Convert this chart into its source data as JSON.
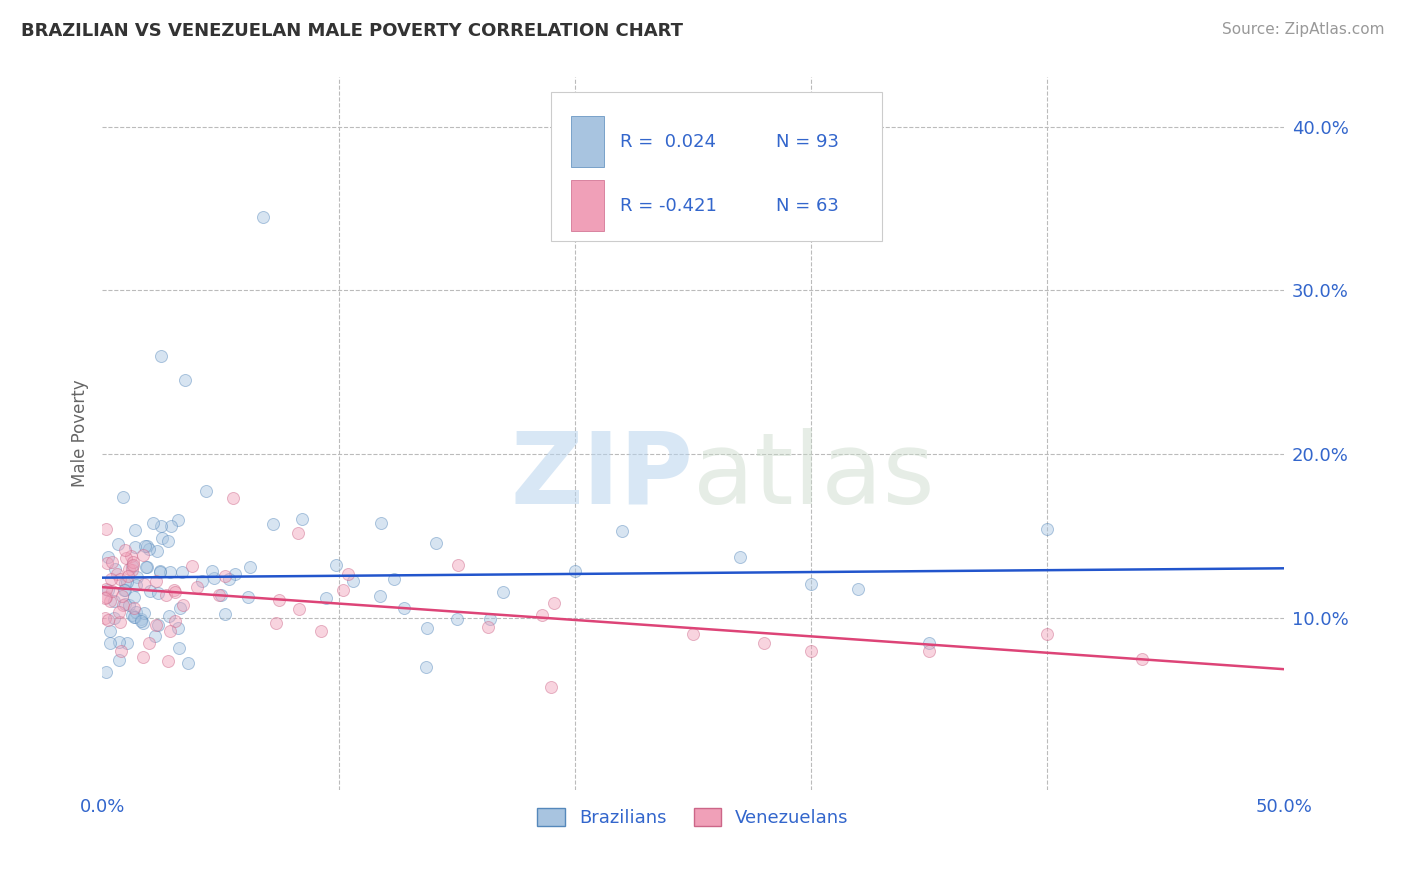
{
  "title": "BRAZILIAN VS VENEZUELAN MALE POVERTY CORRELATION CHART",
  "source": "Source: ZipAtlas.com",
  "ylabel": "Male Poverty",
  "xlim": [
    0,
    0.5
  ],
  "ylim": [
    -0.005,
    0.43
  ],
  "brazil_color": "#a8c4e0",
  "brazil_edge_color": "#5588bb",
  "venezuela_color": "#f0a0b8",
  "venezuela_edge_color": "#cc6688",
  "trend_brazil_color": "#2255cc",
  "trend_venezuela_color": "#dd4477",
  "legend_r_brazil": "R =  0.024",
  "legend_n_brazil": "N = 93",
  "legend_r_venezuela": "R = -0.421",
  "legend_n_venezuela": "N = 63",
  "watermark_zip": "ZIP",
  "watermark_atlas": "atlas",
  "legend_label_brazil": "Brazilians",
  "legend_label_venezuela": "Venezuelans",
  "grid_color": "#bbbbbb",
  "background_color": "#ffffff",
  "title_color": "#333333",
  "axis_label_color": "#3366cc",
  "marker_size": 75,
  "marker_alpha": 0.45,
  "trend_linewidth": 1.8
}
